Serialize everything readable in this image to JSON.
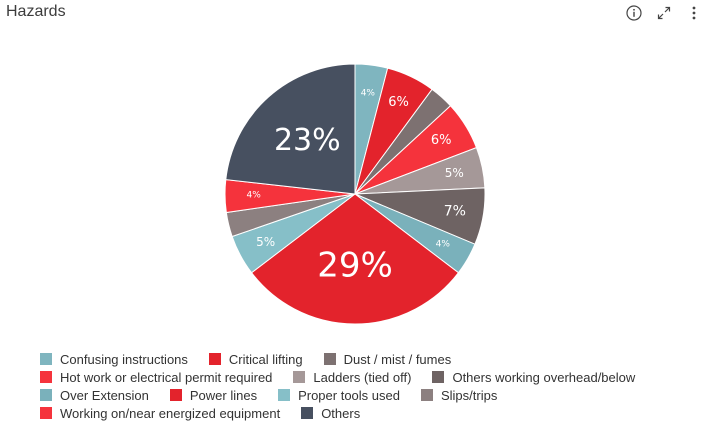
{
  "header": {
    "title": "Hazards",
    "icons": [
      "info-icon",
      "expand-icon",
      "more-vertical-icon"
    ]
  },
  "chart_data": {
    "type": "pie",
    "title": "Hazards",
    "legend_position": "bottom",
    "slices": [
      {
        "name": "Confusing instructions",
        "value": 4,
        "label": "4%",
        "color": "#7fb5bf",
        "label_size": 9
      },
      {
        "name": "Critical lifting",
        "value": 6,
        "label": "6%",
        "color": "#e3232c",
        "label_size": 13
      },
      {
        "name": "Dust / mist / fumes",
        "value": 3,
        "label": "",
        "color": "#7d7171",
        "label_size": 0
      },
      {
        "name": "Hot work or electrical permit required",
        "value": 6,
        "label": "6%",
        "color": "#f5333c",
        "label_size": 13
      },
      {
        "name": "Ladders (tied off)",
        "value": 5,
        "label": "5%",
        "color": "#a59898",
        "label_size": 12
      },
      {
        "name": "Others working overhead/below",
        "value": 7,
        "label": "7%",
        "color": "#6e6363",
        "label_size": 14
      },
      {
        "name": "Over Extension",
        "value": 4,
        "label": "4%",
        "color": "#7ab1bb",
        "label_size": 9
      },
      {
        "name": "Power lines",
        "value": 29,
        "label": "29%",
        "color": "#e3232c",
        "label_size": 34
      },
      {
        "name": "Proper tools used",
        "value": 5,
        "label": "5%",
        "color": "#86bfc8",
        "label_size": 12
      },
      {
        "name": "Slips/trips",
        "value": 3,
        "label": "",
        "color": "#8c8080",
        "label_size": 0
      },
      {
        "name": "Working on/near energized equipment",
        "value": 4,
        "label": "4%",
        "color": "#f5333c",
        "label_size": 9
      },
      {
        "name": "Others",
        "value": 23,
        "label": "23%",
        "color": "#475060",
        "label_size": 30
      }
    ]
  },
  "legend": {
    "rows": [
      [
        0,
        1,
        2
      ],
      [
        3,
        4,
        5
      ],
      [
        6,
        7,
        8,
        9
      ],
      [
        10,
        11
      ]
    ]
  }
}
